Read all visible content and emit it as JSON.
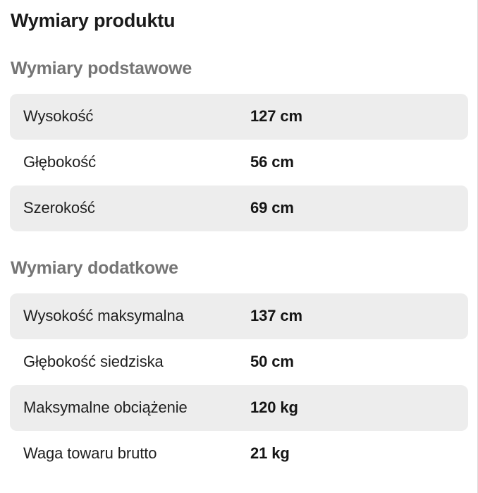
{
  "page": {
    "title": "Wymiary produktu"
  },
  "sections": [
    {
      "heading": "Wymiary podstawowe",
      "rows": [
        {
          "label": "Wysokość",
          "value": "127 cm"
        },
        {
          "label": "Głębokość",
          "value": "56 cm"
        },
        {
          "label": "Szerokość",
          "value": "69 cm"
        }
      ]
    },
    {
      "heading": "Wymiary dodatkowe",
      "rows": [
        {
          "label": "Wysokość maksymalna",
          "value": "137 cm"
        },
        {
          "label": "Głębokość siedziska",
          "value": "50 cm"
        },
        {
          "label": "Maksymalne obciążenie",
          "value": "120 kg"
        },
        {
          "label": "Waga towaru brutto",
          "value": "21 kg"
        }
      ]
    }
  ],
  "colors": {
    "row_alt_bg": "#ededed",
    "section_heading": "#757575",
    "title_text": "#1b1b1b",
    "label_text": "#1f1f1f",
    "value_text": "#151515",
    "panel_border": "#dcdcdc"
  }
}
